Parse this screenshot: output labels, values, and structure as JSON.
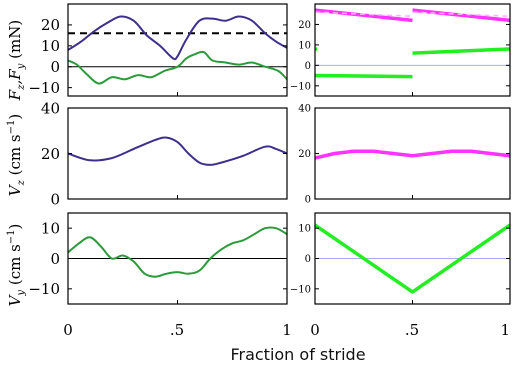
{
  "x_label": "Fraction of stride",
  "left_x_ticks": [
    "0",
    ".5",
    "1"
  ],
  "right_x_ticks": [
    "0",
    ".5",
    "1"
  ],
  "chart_data": [
    {
      "id": "left-force",
      "type": "line",
      "ylabel": "F_z, F_y (mN)",
      "ylim": [
        -14,
        30
      ],
      "yticks": [
        20,
        10,
        0,
        -10
      ],
      "zero_line": true,
      "hline": {
        "y": 16,
        "style": "dashed",
        "color": "#000000"
      },
      "series": [
        {
          "color": "#3d2f8c",
          "x": [
            0,
            0.06,
            0.12,
            0.18,
            0.24,
            0.3,
            0.36,
            0.42,
            0.48,
            0.5,
            0.54,
            0.6,
            0.66,
            0.72,
            0.78,
            0.84,
            0.9,
            0.95,
            1
          ],
          "y": [
            8,
            12,
            17,
            21,
            24,
            22,
            15,
            10,
            4,
            5,
            13,
            22,
            23,
            22,
            24,
            22,
            16,
            12,
            9
          ]
        },
        {
          "color": "#2a9a3a",
          "x": [
            0,
            0.04,
            0.08,
            0.14,
            0.2,
            0.26,
            0.32,
            0.38,
            0.44,
            0.5,
            0.54,
            0.58,
            0.62,
            0.66,
            0.72,
            0.78,
            0.84,
            0.9,
            0.96,
            1
          ],
          "y": [
            3,
            1,
            -3,
            -8,
            -5,
            -6,
            -4,
            -5,
            -2,
            0,
            4,
            6,
            7,
            3,
            2,
            1,
            2,
            0,
            -2,
            -6
          ]
        }
      ]
    },
    {
      "id": "right-force",
      "type": "scatter",
      "ylim": [
        -15,
        30
      ],
      "yticks": [
        20,
        10,
        0,
        -10
      ],
      "zero_line": true,
      "zero_color": "#aaaaff",
      "series": [
        {
          "color": "#ff33ff",
          "segments": [
            {
              "x": [
                0,
                0.5
              ],
              "y": [
                27,
                22
              ]
            },
            {
              "x": [
                0.5,
                1
              ],
              "y": [
                27,
                22
              ]
            }
          ]
        },
        {
          "color": "#ffb0ff",
          "style": "dashed",
          "segments": [
            {
              "x": [
                0,
                0.5
              ],
              "y": [
                26,
                24
              ]
            },
            {
              "x": [
                0.5,
                1
              ],
              "y": [
                26,
                24
              ]
            }
          ]
        },
        {
          "color": "#22ee22",
          "segments": [
            {
              "x": [
                0,
                0.5
              ],
              "y": [
                -5,
                -5.5
              ]
            },
            {
              "x": [
                0.5,
                1
              ],
              "y": [
                6,
                8
              ]
            }
          ]
        },
        {
          "color": "#22ee22",
          "segments": [
            {
              "x": [
                0,
                0.01
              ],
              "y": [
                8,
                8
              ]
            }
          ]
        }
      ]
    },
    {
      "id": "left-vz",
      "type": "line",
      "ylabel": "V_z (cm s^-1)",
      "ylim": [
        0,
        40
      ],
      "yticks": [
        40,
        20,
        0
      ],
      "series": [
        {
          "color": "#3d2f8c",
          "x": [
            0,
            0.1,
            0.2,
            0.3,
            0.4,
            0.45,
            0.5,
            0.55,
            0.6,
            0.65,
            0.7,
            0.8,
            0.9,
            0.95,
            1
          ],
          "y": [
            20,
            17,
            18,
            22,
            26,
            27,
            25,
            20,
            16,
            15,
            16,
            19,
            23,
            22,
            20
          ]
        }
      ]
    },
    {
      "id": "right-vz",
      "type": "scatter",
      "ylim": [
        0,
        40
      ],
      "yticks": [
        40,
        20,
        0
      ],
      "series": [
        {
          "color": "#ff33ff",
          "x": [
            0,
            0.1,
            0.2,
            0.3,
            0.4,
            0.5,
            0.6,
            0.7,
            0.8,
            0.9,
            1
          ],
          "y": [
            18,
            20,
            21,
            21,
            20,
            19,
            20,
            21,
            21,
            20,
            19
          ]
        }
      ]
    },
    {
      "id": "left-vy",
      "type": "line",
      "ylabel": "V_y (cm s^-1)",
      "ylim": [
        -15,
        15
      ],
      "yticks": [
        10,
        0,
        -10
      ],
      "zero_line": true,
      "series": [
        {
          "color": "#2a9a3a",
          "x": [
            0,
            0.05,
            0.1,
            0.15,
            0.2,
            0.25,
            0.3,
            0.35,
            0.4,
            0.45,
            0.5,
            0.55,
            0.6,
            0.65,
            0.7,
            0.75,
            0.8,
            0.85,
            0.9,
            0.95,
            1
          ],
          "y": [
            2,
            5,
            7,
            4,
            0,
            1,
            -1,
            -5,
            -6,
            -5,
            -4.5,
            -5,
            -4,
            0,
            3,
            5,
            6,
            8,
            10,
            10,
            8
          ]
        }
      ]
    },
    {
      "id": "right-vy",
      "type": "scatter",
      "ylim": [
        -15,
        15
      ],
      "yticks": [
        10,
        0,
        -10
      ],
      "zero_line": true,
      "zero_color": "#aaaaff",
      "series": [
        {
          "color": "#22ee22",
          "x": [
            0,
            0.5,
            1
          ],
          "y": [
            11,
            -11,
            11
          ]
        }
      ]
    }
  ]
}
